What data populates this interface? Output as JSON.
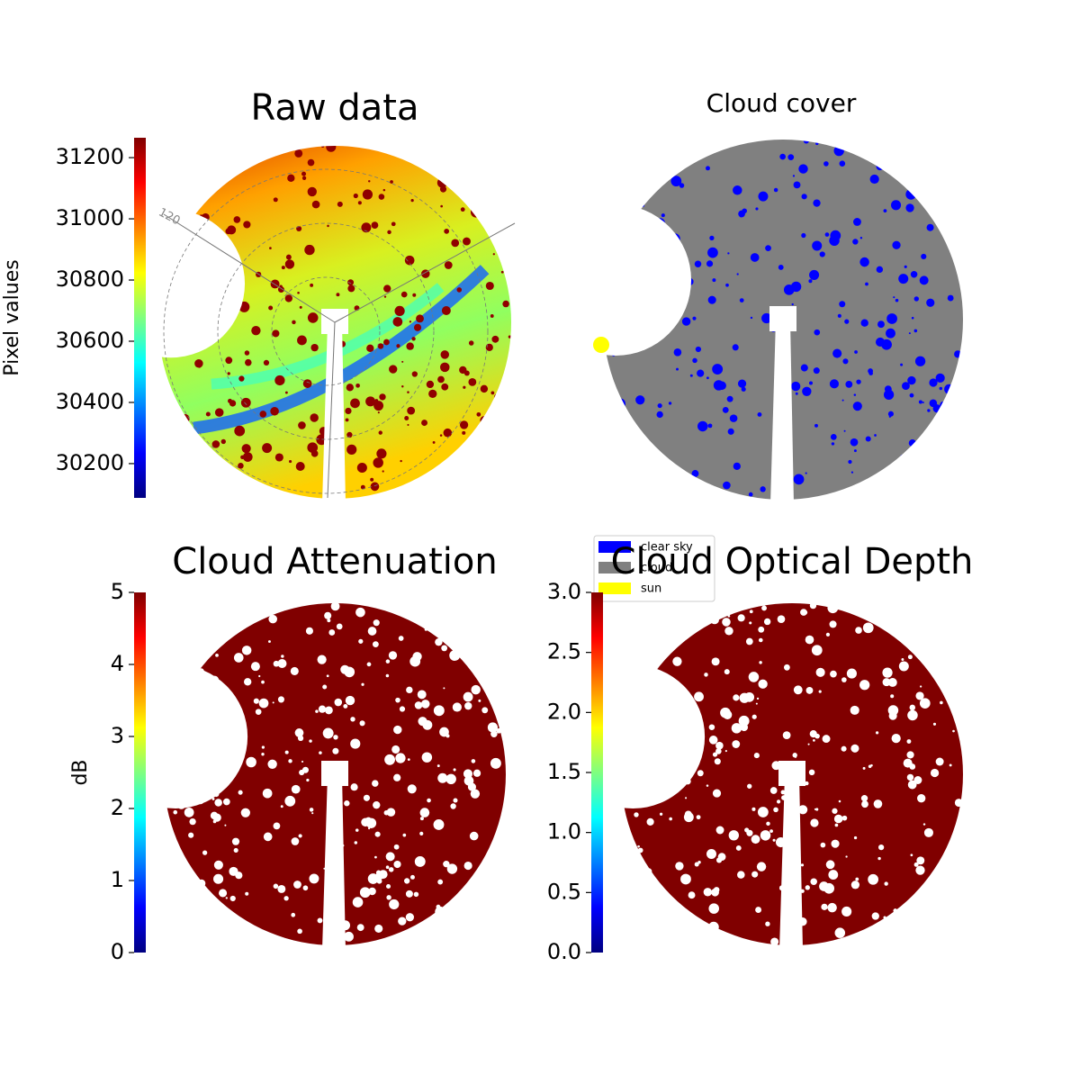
{
  "chart_data": [
    {
      "type": "image",
      "title": "Raw data",
      "ylabel": "Pixel values",
      "colormap": "jet",
      "ylim": [
        30088,
        31265
      ],
      "yticks": [
        30200,
        30400,
        30600,
        30800,
        31000,
        31200
      ],
      "annotations": [
        "120"
      ]
    },
    {
      "type": "image",
      "title": "Cloud cover",
      "legend": "lower left",
      "series": [
        {
          "name": "clear sky",
          "color": "#0000ff"
        },
        {
          "name": "cloud",
          "color": "#808080"
        },
        {
          "name": "sun",
          "color": "#ffff00"
        }
      ]
    },
    {
      "type": "image",
      "title": "Cloud Attenuation",
      "ylabel": "dB",
      "colormap": "jet",
      "color": "#800000",
      "ylim": [
        0,
        5
      ],
      "yticks": [
        0,
        1,
        2,
        3,
        4,
        5
      ]
    },
    {
      "type": "image",
      "title": "Cloud Optical Depth",
      "colormap": "jet",
      "color": "#800000",
      "ylim": [
        0,
        3
      ],
      "yticks": [
        {
          "value": 0,
          "label": "0.0"
        },
        0.5,
        {
          "value": 1,
          "label": "1.0"
        },
        1.5,
        {
          "value": 2,
          "label": "2.0"
        },
        2.5,
        {
          "value": 3,
          "label": "3.0"
        }
      ]
    }
  ]
}
